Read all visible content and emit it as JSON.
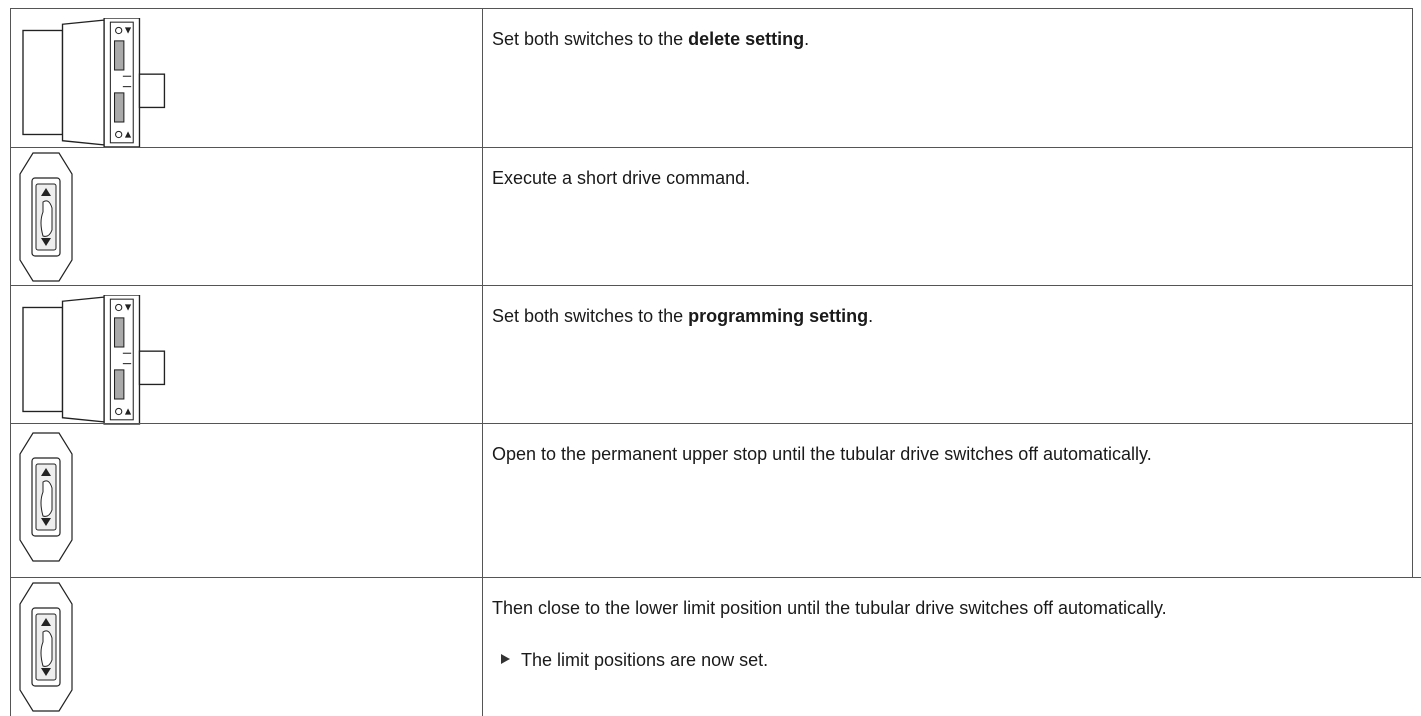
{
  "table": {
    "rows": [
      {
        "parts": [
          "Set both switches to the ",
          "delete setting",
          "."
        ]
      },
      {
        "parts": [
          "Execute a short drive command."
        ]
      },
      {
        "parts": [
          "Set both switches to the ",
          "programming setting",
          "."
        ]
      },
      {
        "parts": [
          "Open to the permanent upper stop until the tubular drive switches off automatically."
        ]
      },
      {
        "parts": [
          "Then close to the lower limit position until the tubular drive switches off automatically."
        ],
        "result": "The limit positions are now set."
      }
    ]
  }
}
